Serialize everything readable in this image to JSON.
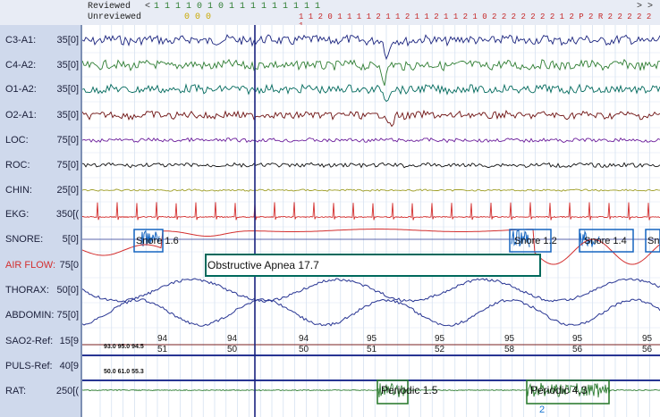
{
  "header": {
    "reviewed_label": "Reviewed",
    "unreviewed_label": "Unreviewed",
    "left_arrow": "<",
    "right_arrows": "> >",
    "reviewed_marks": "1 1 1 1 0   1 0   1 1 1 1 1 1 1 1 1",
    "unreviewed_marks_left": "0 0   0",
    "stage_marks": "1 1 2 0 1 1 1 1 2 1 1 2   1 1 2 1 1 2 1 0 2 2 2 2 2 2 2 1 2 P 2 R 2 2 2 2 2 1"
  },
  "channels": [
    {
      "name": "C3-A1:",
      "scale": "35[0]"
    },
    {
      "name": "C4-A2:",
      "scale": "35[0]"
    },
    {
      "name": "O1-A2:",
      "scale": "35[0]"
    },
    {
      "name": "O2-A1:",
      "scale": "35[0]"
    },
    {
      "name": "LOC:",
      "scale": "75[0]"
    },
    {
      "name": "ROC:",
      "scale": "75[0]"
    },
    {
      "name": "CHIN:",
      "scale": "25[0]"
    },
    {
      "name": "EKG:",
      "scale": "350[("
    },
    {
      "name": "SNORE:",
      "scale": "5[0]"
    },
    {
      "name": "AIR FLOW:",
      "scale": "75[0"
    },
    {
      "name": "THORAX:",
      "scale": "50[0]"
    },
    {
      "name": "ABDOMIN:",
      "scale": "75[0]"
    },
    {
      "name": "SAO2-Ref:",
      "scale": "15[9"
    },
    {
      "name": "PULS-Ref:",
      "scale": "40[9"
    },
    {
      "name": "RAT:",
      "scale": "250[("
    }
  ],
  "events": {
    "snore1": "Snore 1.6",
    "snore2": "Snore 1.2",
    "snore3": "Snore 1.4",
    "snore_cut": "Sno",
    "apnea": "Obstructive Apnea 17.7",
    "periodic1": "Periodic 1.5",
    "periodic2": "Periodic 4.3",
    "epoch_mark": "2"
  },
  "sao2": {
    "small_values": "93.0  95.0  94.5",
    "top": [
      "94",
      "94",
      "94",
      "95",
      "95",
      "95",
      "95",
      "95"
    ],
    "bottom": [
      "51",
      "50",
      "50",
      "51",
      "52",
      "58",
      "56",
      "56"
    ]
  },
  "puls": {
    "small_values": "50.0  61.0  55.3"
  },
  "colors": {
    "eeg_blue": "#1a237e",
    "eeg_green": "#2e7d32",
    "eeg_teal": "#00695c",
    "eeg_maroon": "#6d1010",
    "loc_purple": "#6a1b9a",
    "roc_black": "#111111",
    "chin_olive": "#9e9d24",
    "ekg_red": "#d32f2f",
    "airflow_red": "#d32f2f",
    "resp_blue": "#283593",
    "rat_green": "#2e7d32",
    "event_box": "#1565c0",
    "apnea_box": "#00695c",
    "periodic_box": "#2e7d32"
  }
}
